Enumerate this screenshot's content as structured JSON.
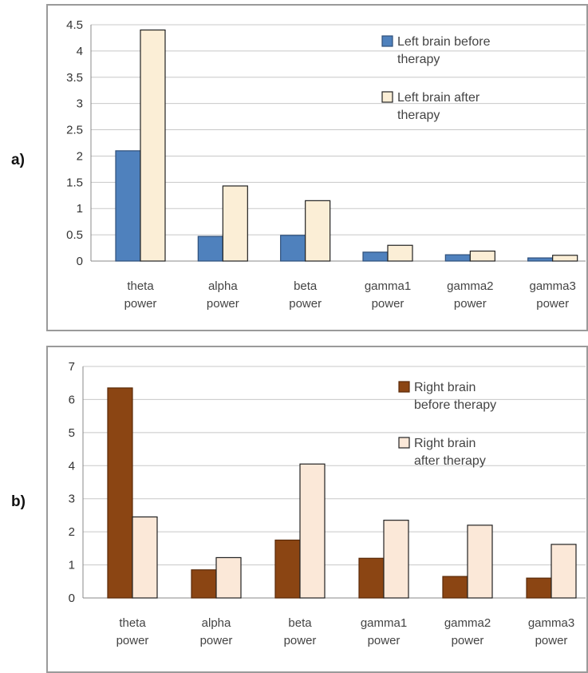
{
  "panels": [
    {
      "label": "a)",
      "chart_data": {
        "type": "bar",
        "categories": [
          [
            "theta",
            "power"
          ],
          [
            "alpha",
            "power"
          ],
          [
            "beta",
            "power"
          ],
          [
            "gamma1",
            "power"
          ],
          [
            "gamma2",
            "power"
          ],
          [
            "gamma3",
            "power"
          ]
        ],
        "series": [
          {
            "name": [
              "Left brain before",
              "therapy"
            ],
            "values": [
              2.1,
              0.47,
              0.49,
              0.17,
              0.12,
              0.06
            ],
            "color": "#4f81bd",
            "stroke": "#2f4f7a"
          },
          {
            "name": [
              "Left brain after",
              "therapy"
            ],
            "values": [
              4.4,
              1.43,
              1.15,
              0.3,
              0.19,
              0.11
            ],
            "color": "#fbeed6",
            "stroke": "#222222"
          }
        ],
        "yticks": [
          "0",
          "0.5",
          "1",
          "1.5",
          "2",
          "2.5",
          "3",
          "3.5",
          "4",
          "4.5"
        ],
        "ylim": [
          0,
          4.5
        ],
        "grid": true,
        "legend": "top-right"
      }
    },
    {
      "label": "b)",
      "chart_data": {
        "type": "bar",
        "categories": [
          [
            "theta",
            "power"
          ],
          [
            "alpha",
            "power"
          ],
          [
            "beta",
            "power"
          ],
          [
            "gamma1",
            "power"
          ],
          [
            "gamma2",
            "power"
          ],
          [
            "gamma3",
            "power"
          ]
        ],
        "series": [
          {
            "name": [
              "Right brain",
              "before therapy"
            ],
            "values": [
              6.35,
              0.85,
              1.75,
              1.2,
              0.65,
              0.6
            ],
            "color": "#8b4513",
            "stroke": "#5a2a08"
          },
          {
            "name": [
              "Right brain",
              "after therapy"
            ],
            "values": [
              2.45,
              1.22,
              4.05,
              2.35,
              2.2,
              1.62
            ],
            "color": "#fbe8d8",
            "stroke": "#222222"
          }
        ],
        "yticks": [
          "0",
          "1",
          "2",
          "3",
          "4",
          "5",
          "6",
          "7"
        ],
        "ylim": [
          0,
          7
        ],
        "grid": true,
        "legend": "top-right"
      }
    }
  ]
}
